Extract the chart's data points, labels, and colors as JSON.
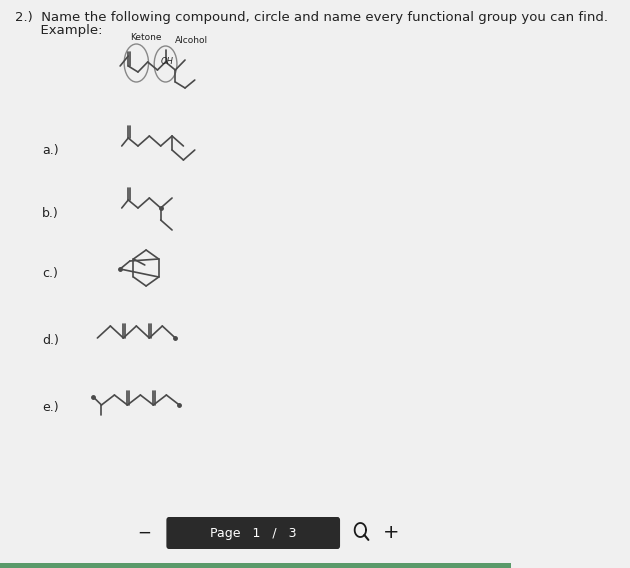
{
  "title_line1": "2.)  Name the following compound, circle and name every functional group you can find.",
  "title_line2": "      Example:",
  "ketone_label": "Ketone",
  "alcohol_label": "Alcohol",
  "oh_label": "OH",
  "labels": [
    "a.)",
    "b.)",
    "c.)",
    "d.)",
    "e.)"
  ],
  "page_bar_text": "Page   1   /   3",
  "bg_color": "#f0f0f0",
  "line_color": "#4a4a4a",
  "text_color": "#222222",
  "page_bar_bg": "#2a2a2a",
  "page_bar_text_color": "#ffffff",
  "bottom_bar_color": "#5a9a6a",
  "font_size_title": 9.5,
  "font_size_label": 9,
  "font_size_small": 7
}
